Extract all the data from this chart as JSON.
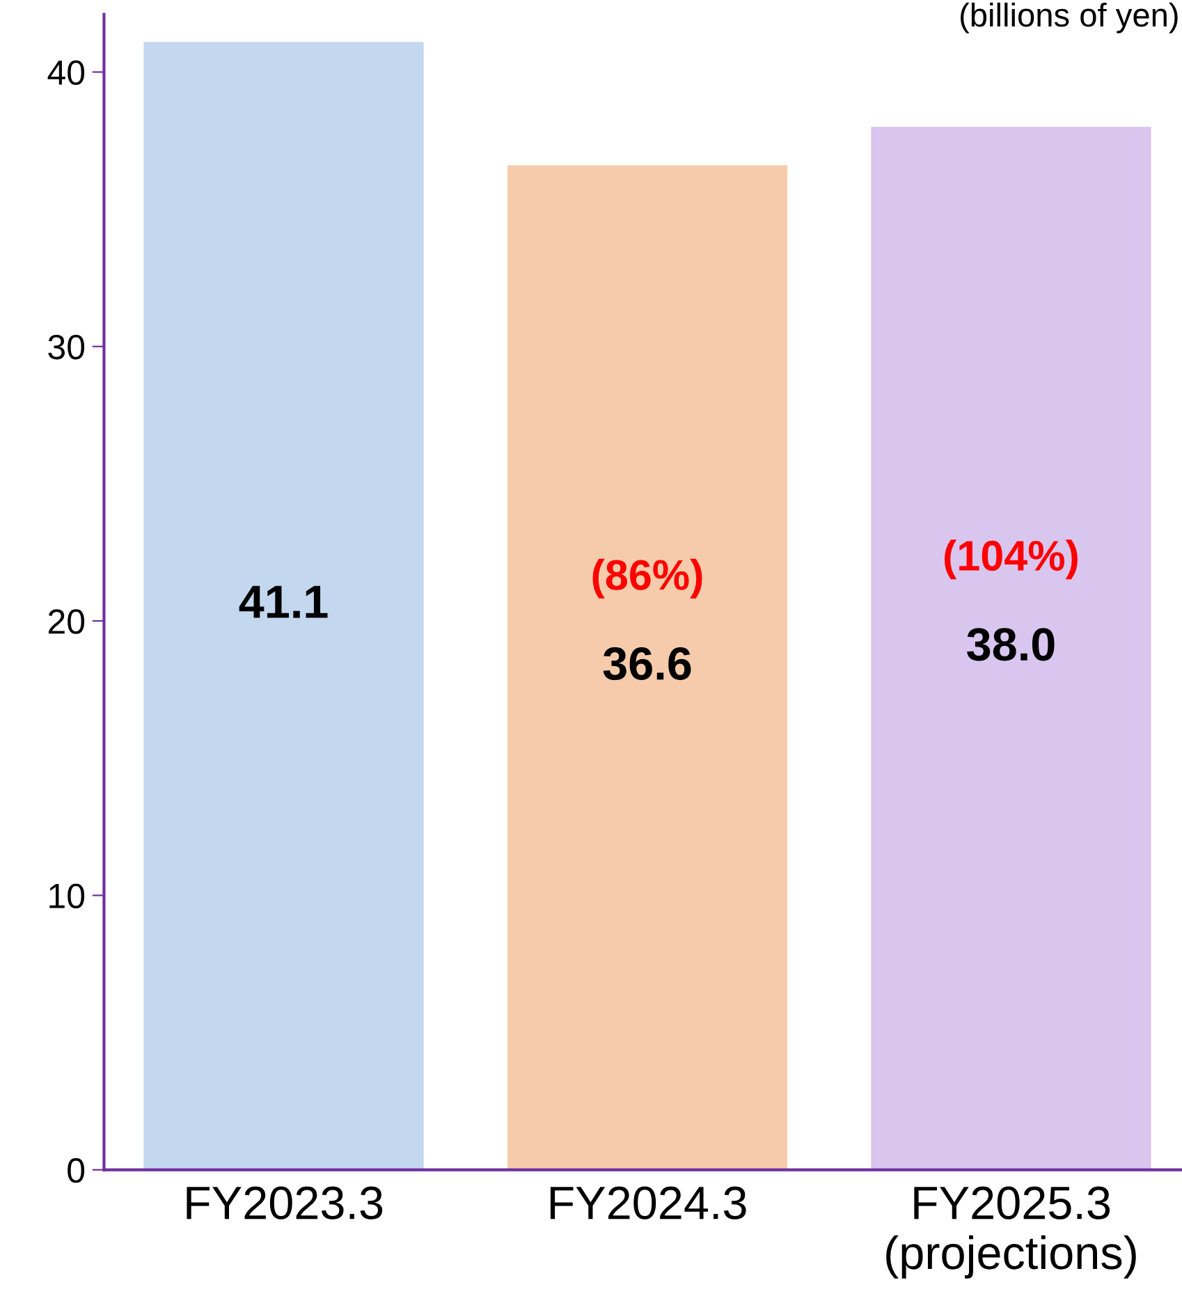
{
  "chart_data": {
    "type": "bar",
    "categories": [
      "FY2023.3",
      "FY2024.3",
      "FY2025.3\n(projections)"
    ],
    "values": [
      41.1,
      36.6,
      38.0
    ],
    "colors": [
      "#c3d8ee",
      "#f6cbab",
      "#d9c6ef"
    ],
    "value_labels": [
      "41.1",
      "36.6",
      "38.0"
    ],
    "ylim": [
      0,
      42.1
    ],
    "yticks": [
      0,
      10,
      20,
      30,
      40
    ],
    "grid": false,
    "legend": false,
    "annotations": [
      "(billions of yen)",
      "(86%)",
      "(104%)"
    ]
  }
}
